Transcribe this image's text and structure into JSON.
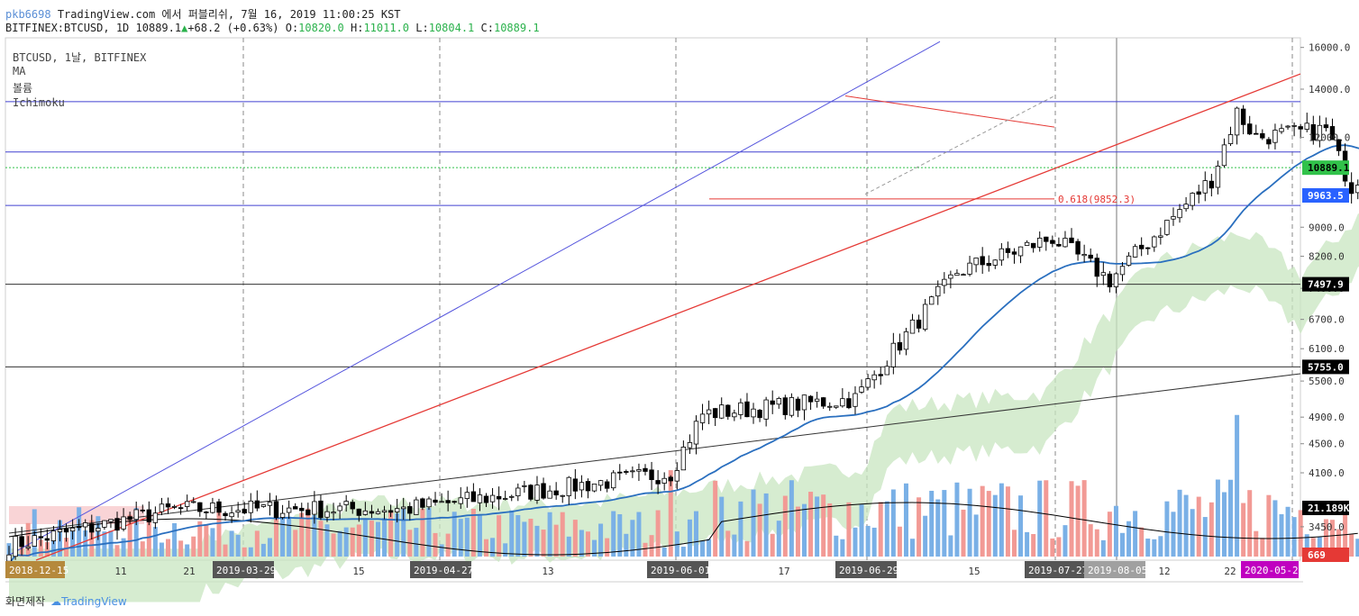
{
  "header": {
    "user": "pkb6698",
    "published": "TradingView.com 에서 퍼블리쉬, 7월 16, 2019 11:00:25 KST",
    "symbol": "BITFINEX:BTCUSD, 1D",
    "last": "10889.1",
    "change_arrow": "▲",
    "change": "+68.2 (+0.63%)",
    "o_label": "O:",
    "o": "10820.0",
    "h_label": "H:",
    "h": "11011.0",
    "l_label": "L:",
    "l": "10804.1",
    "c_label": "C:",
    "c": "10889.1"
  },
  "legend": {
    "symbol": "BTCUSD, 1날, BITFINEX",
    "ma": "MA",
    "volume": "볼륨",
    "ichimoku": "Ichimoku"
  },
  "footer": {
    "caption": "화면제작",
    "brand": "TradingView"
  },
  "colors": {
    "up_candle": "#ffffff",
    "down_candle": "#000000",
    "vol_up": "#7ab0e6",
    "vol_down": "#f29a95",
    "ma": "#2a6fbf",
    "cloud": "#c8e6c0",
    "cloud_red": "#f7c9cc",
    "channel": "#5555dd",
    "support": "#e53935"
  },
  "chart_data": {
    "type": "candlestick",
    "symbol": "BITFINEX:BTCUSD",
    "interval": "1D",
    "y_axis": {
      "scale": "log",
      "range": [
        3100,
        16500
      ],
      "ticks": [
        "16000.0",
        "14000.0",
        "12000.0",
        "9000.0",
        "8200.0",
        "7400.0",
        "6700.0",
        "6100.0",
        "5500.0",
        "4900.0",
        "4500.0",
        "4100.0",
        "3450.0"
      ]
    },
    "price_labels": [
      {
        "text": "10889.1",
        "value": 10889.1,
        "bg": "#31c24a",
        "fg": "#000000"
      },
      {
        "text": "9963.5",
        "value": 9963.5,
        "bg": "#2962ff",
        "fg": "#ffffff"
      },
      {
        "text": "7497.9",
        "value": 7497.9,
        "bg": "#000000",
        "fg": "#ffffff"
      },
      {
        "text": "5755.0",
        "value": 5755.0,
        "bg": "#000000",
        "fg": "#ffffff"
      },
      {
        "text": "21.189K",
        "value": null,
        "bg": "#000000",
        "fg": "#ffffff"
      },
      {
        "text": "669",
        "value": null,
        "bg": "#e53935",
        "fg": "#ffffff"
      }
    ],
    "x_axis": {
      "ticks": [
        "11",
        "21",
        "15",
        "13",
        "17",
        "15",
        "12",
        "22"
      ],
      "date_badges": [
        {
          "text": "2018-12-15",
          "bg": "#b5893c"
        },
        {
          "text": "2019-03-29",
          "bg": "#555555"
        },
        {
          "text": "2019-04-27",
          "bg": "#555555"
        },
        {
          "text": "2019-06-01",
          "bg": "#555555"
        },
        {
          "text": "2019-06-29",
          "bg": "#555555"
        },
        {
          "text": "2019-07-27",
          "bg": "#555555"
        },
        {
          "text": "2019-08-05",
          "bg": "#a0a0a0"
        },
        {
          "text": "2020-05-21",
          "bg": "#c000c0"
        }
      ]
    },
    "horizontal_levels": [
      13450,
      11450,
      10889.1,
      9650,
      7497.9,
      5755.0
    ],
    "fib_label": "0.618(9852.3)",
    "fib_value": 9852.3,
    "last_price": 10889.1,
    "ohlc_waypoints": [
      {
        "date": "2018-12-15",
        "close": 3250
      },
      {
        "date": "2019-01-10",
        "close": 3650
      },
      {
        "date": "2019-02-15",
        "close": 3650
      },
      {
        "date": "2019-03-29",
        "close": 4100
      },
      {
        "date": "2019-04-03",
        "close": 4950
      },
      {
        "date": "2019-04-27",
        "close": 5200
      },
      {
        "date": "2019-05-13",
        "close": 7800
      },
      {
        "date": "2019-05-28",
        "close": 8700
      },
      {
        "date": "2019-06-06",
        "close": 7600
      },
      {
        "date": "2019-06-22",
        "close": 10500
      },
      {
        "date": "2019-06-26",
        "close": 13000
      },
      {
        "date": "2019-06-29",
        "close": 12000
      },
      {
        "date": "2019-07-10",
        "close": 12300
      },
      {
        "date": "2019-07-14",
        "close": 10250
      },
      {
        "date": "2019-07-16",
        "close": 10889.1
      }
    ],
    "grid": true
  }
}
